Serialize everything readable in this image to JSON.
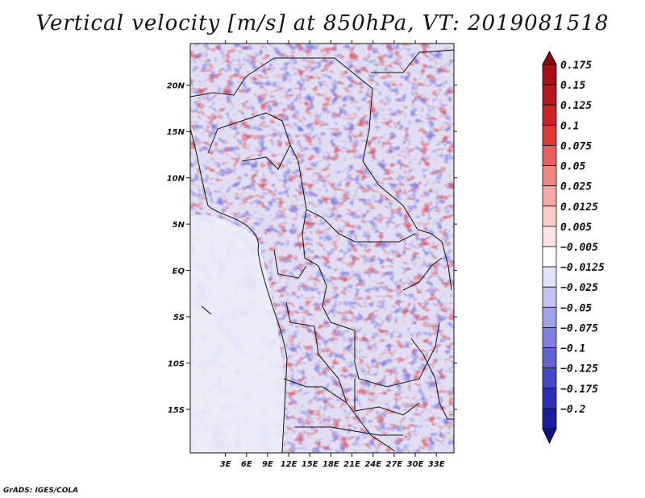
{
  "title": "Vertical velocity [m/s] at 850hPa, VT: 2019081518",
  "credit": "GrADS: IGES/COLA",
  "map": {
    "lon_range": [
      -2,
      35.5
    ],
    "lat_range": [
      -19.7,
      24.5
    ],
    "lon_ticks": [
      {
        "value": 3,
        "label": "3E"
      },
      {
        "value": 6,
        "label": "6E"
      },
      {
        "value": 9,
        "label": "9E"
      },
      {
        "value": 12,
        "label": "12E"
      },
      {
        "value": 15,
        "label": "15E"
      },
      {
        "value": 18,
        "label": "18E"
      },
      {
        "value": 21,
        "label": "21E"
      },
      {
        "value": 24,
        "label": "24E"
      },
      {
        "value": 27,
        "label": "27E"
      },
      {
        "value": 30,
        "label": "30E"
      },
      {
        "value": 33,
        "label": "33E"
      }
    ],
    "lat_ticks": [
      {
        "value": 20,
        "label": "20N"
      },
      {
        "value": 15,
        "label": "15N"
      },
      {
        "value": 10,
        "label": "10N"
      },
      {
        "value": 5,
        "label": "5N"
      },
      {
        "value": 0,
        "label": "EQ"
      },
      {
        "value": -5,
        "label": "5S"
      },
      {
        "value": -10,
        "label": "10S"
      },
      {
        "value": -15,
        "label": "15S"
      }
    ]
  },
  "colorbar": {
    "levels": [
      {
        "label": "0.175",
        "color": "#a50f15"
      },
      {
        "label": "0.15",
        "color": "#b8161e"
      },
      {
        "label": "0.125",
        "color": "#cb2328"
      },
      {
        "label": "0.1",
        "color": "#dd3a37"
      },
      {
        "label": "0.075",
        "color": "#e8615c"
      },
      {
        "label": "0.05",
        "color": "#f08784"
      },
      {
        "label": "0.025",
        "color": "#f6aaa8"
      },
      {
        "label": "0.0125",
        "color": "#fbcbc9"
      },
      {
        "label": "0.005",
        "color": "#fde4e3"
      },
      {
        "label": "−0.005",
        "color": "#ffffff"
      },
      {
        "label": "−0.0125",
        "color": "#e2e2fb"
      },
      {
        "label": "−0.025",
        "color": "#c3c3f4"
      },
      {
        "label": "−0.05",
        "color": "#a2a2ec"
      },
      {
        "label": "−0.075",
        "color": "#8181e2"
      },
      {
        "label": "−0.1",
        "color": "#6363d7"
      },
      {
        "label": "−0.125",
        "color": "#4747c9"
      },
      {
        "label": "−0.175",
        "color": "#2e2eb6"
      },
      {
        "label": "−0.2",
        "color": "#1c1ca2"
      }
    ],
    "top_color": "#8b0a10",
    "bottom_color": "#10108a"
  }
}
